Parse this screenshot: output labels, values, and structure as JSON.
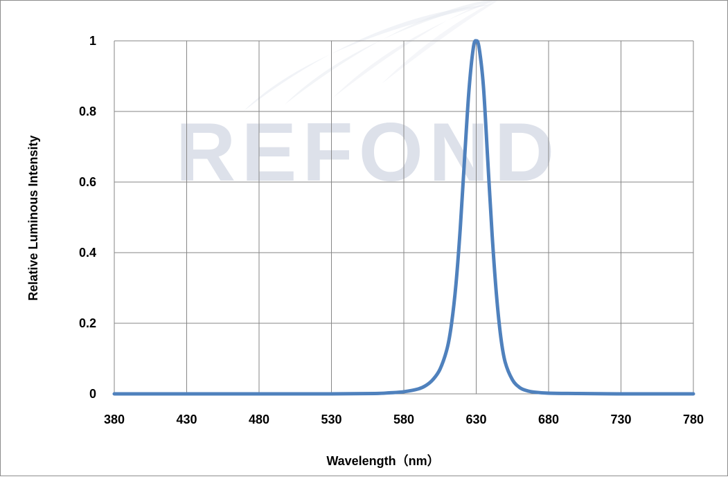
{
  "chart_data": {
    "type": "line",
    "title": "",
    "xlabel": "Wavelength（nm）",
    "ylabel": "Relative Luminous Intensity",
    "xlim": [
      380,
      780
    ],
    "ylim": [
      0,
      1
    ],
    "x_ticks": [
      "380",
      "430",
      "480",
      "530",
      "580",
      "630",
      "680",
      "730",
      "780"
    ],
    "y_ticks": [
      "0",
      "0.2",
      "0.4",
      "0.6",
      "0.8",
      "1"
    ],
    "grid": true,
    "legend": "none",
    "series": [
      {
        "color": "#4f81bd",
        "x": [
          380,
          430,
          480,
          530,
          560,
          570,
          580,
          590,
          595,
          600,
          605,
          610,
          613,
          616,
          619,
          622,
          625,
          628,
          630,
          632,
          635,
          638,
          641,
          644,
          647,
          650,
          655,
          660,
          665,
          670,
          680,
          700,
          730,
          780
        ],
        "y": [
          0,
          0,
          0,
          0,
          0.001,
          0.003,
          0.006,
          0.014,
          0.023,
          0.04,
          0.07,
          0.13,
          0.2,
          0.31,
          0.47,
          0.67,
          0.86,
          0.98,
          1.0,
          0.98,
          0.87,
          0.66,
          0.45,
          0.28,
          0.16,
          0.09,
          0.04,
          0.018,
          0.009,
          0.005,
          0.002,
          0.001,
          0,
          0
        ]
      }
    ],
    "watermark": "REFOND"
  }
}
